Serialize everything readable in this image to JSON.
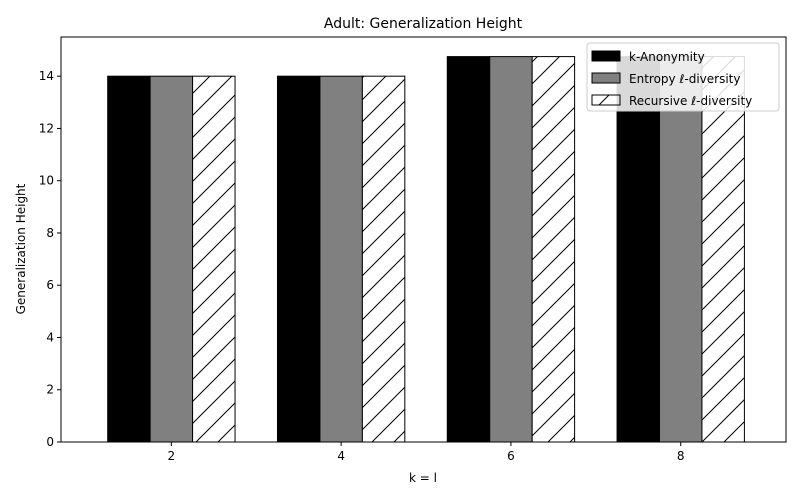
{
  "chart_data": {
    "type": "bar",
    "title": "Adult: Generalization Height",
    "xlabel": "k = l",
    "ylabel": "Generalization Height",
    "categories": [
      "2",
      "4",
      "6",
      "8"
    ],
    "series": [
      {
        "name": "k-Anonymity",
        "values": [
          14,
          14,
          14.75,
          14.75
        ],
        "color": "#000000",
        "pattern": "solid"
      },
      {
        "name": "Entropy ℓ-diversity",
        "values": [
          14,
          14,
          14.75,
          14.75
        ],
        "color": "#808080",
        "pattern": "solid"
      },
      {
        "name": "Recursive ℓ-diversity",
        "values": [
          14,
          14,
          14.75,
          14.75
        ],
        "color": "#ffffff",
        "pattern": "hatch"
      }
    ],
    "ylim": [
      0,
      15.5
    ],
    "yticks": [
      "0",
      "2",
      "4",
      "6",
      "8",
      "10",
      "12",
      "14"
    ],
    "grid": false,
    "legend_position": "top-right"
  }
}
